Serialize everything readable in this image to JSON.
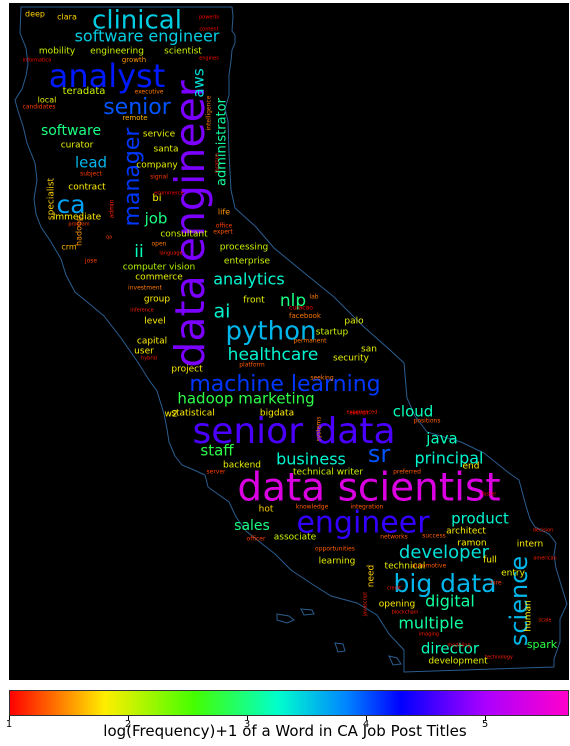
{
  "chart_data": {
    "type": "wordcloud",
    "xlabel": "log(Frequency)+1 of a Word in CA Job Post Titles",
    "colorbar": {
      "min": 1,
      "max": 5.7,
      "ticks": [
        "1",
        "2",
        "3",
        "4",
        "5"
      ],
      "colormap": "gist_rainbow"
    },
    "words": [
      {
        "text": "data scientist",
        "value": 5.4
      },
      {
        "text": "senior data",
        "value": 4.6
      },
      {
        "text": "data engineer",
        "value": 4.8
      },
      {
        "text": "engineer",
        "value": 4.5
      },
      {
        "text": "analyst",
        "value": 4.2
      },
      {
        "text": "machine learning",
        "value": 4.1
      },
      {
        "text": "big data",
        "value": 3.6
      },
      {
        "text": "python",
        "value": 3.6
      },
      {
        "text": "clinical",
        "value": 3.5
      },
      {
        "text": "software engineer",
        "value": 3.5
      },
      {
        "text": "senior",
        "value": 4.0
      },
      {
        "text": "manager",
        "value": 4.1
      },
      {
        "text": "ca",
        "value": 3.7
      },
      {
        "text": "science",
        "value": 3.6
      },
      {
        "text": "developer",
        "value": 3.4
      },
      {
        "text": "sr",
        "value": 4.0
      },
      {
        "text": "healthcare",
        "value": 3.3
      },
      {
        "text": "analytics",
        "value": 3.3
      },
      {
        "text": "administrator",
        "value": 3.1
      },
      {
        "text": "aws",
        "value": 3.4
      },
      {
        "text": "software",
        "value": 3.0
      },
      {
        "text": "lead",
        "value": 3.6
      },
      {
        "text": "job",
        "value": 3.0
      },
      {
        "text": "ii",
        "value": 3.2
      },
      {
        "text": "nlp",
        "value": 3.0
      },
      {
        "text": "ai",
        "value": 3.3
      },
      {
        "text": "hadoop marketing",
        "value": 2.8
      },
      {
        "text": "cloud",
        "value": 3.2
      },
      {
        "text": "java",
        "value": 3.2
      },
      {
        "text": "business",
        "value": 3.3
      },
      {
        "text": "principal",
        "value": 3.3
      },
      {
        "text": "staff",
        "value": 2.8
      },
      {
        "text": "product",
        "value": 3.3
      },
      {
        "text": "sales",
        "value": 3.0
      },
      {
        "text": "digital",
        "value": 3.1
      },
      {
        "text": "multiple",
        "value": 3.1
      },
      {
        "text": "director",
        "value": 3.2
      },
      {
        "text": "spark",
        "value": 2.8
      },
      {
        "text": "mobility",
        "value": 2.0
      },
      {
        "text": "engineering",
        "value": 2.0
      },
      {
        "text": "scientist",
        "value": 2.0
      },
      {
        "text": "teradata",
        "value": 2.0
      },
      {
        "text": "local",
        "value": 1.9
      },
      {
        "text": "curator",
        "value": 1.9
      },
      {
        "text": "service",
        "value": 1.9
      },
      {
        "text": "santa",
        "value": 1.9
      },
      {
        "text": "company",
        "value": 1.9
      },
      {
        "text": "contract",
        "value": 1.8
      },
      {
        "text": "immediate",
        "value": 1.8
      },
      {
        "text": "consultant",
        "value": 2.0
      },
      {
        "text": "processing",
        "value": 2.0
      },
      {
        "text": "enterprise",
        "value": 2.0
      },
      {
        "text": "computer vision",
        "value": 2.1
      },
      {
        "text": "commerce",
        "value": 1.9
      },
      {
        "text": "group",
        "value": 1.8
      },
      {
        "text": "level",
        "value": 1.8
      },
      {
        "text": "capital",
        "value": 1.8
      },
      {
        "text": "user",
        "value": 1.8
      },
      {
        "text": "front",
        "value": 1.9
      },
      {
        "text": "startup",
        "value": 2.0
      },
      {
        "text": "palo",
        "value": 1.9
      },
      {
        "text": "san",
        "value": 1.9
      },
      {
        "text": "security",
        "value": 1.9
      },
      {
        "text": "project",
        "value": 1.8
      },
      {
        "text": "statistical",
        "value": 1.8
      },
      {
        "text": "bigdata",
        "value": 1.8
      },
      {
        "text": "w2",
        "value": 1.8
      },
      {
        "text": "backend",
        "value": 1.9
      },
      {
        "text": "technical writer",
        "value": 2.0
      },
      {
        "text": "end",
        "value": 1.8
      },
      {
        "text": "associate",
        "value": 2.0
      },
      {
        "text": "hot",
        "value": 1.7
      },
      {
        "text": "architect",
        "value": 1.8
      },
      {
        "text": "ramon",
        "value": 1.8
      },
      {
        "text": "intern",
        "value": 1.8
      },
      {
        "text": "full",
        "value": 1.8
      },
      {
        "text": "entry",
        "value": 1.9
      },
      {
        "text": "learning",
        "value": 1.9
      },
      {
        "text": "technical",
        "value": 1.9
      },
      {
        "text": "opening",
        "value": 1.8
      },
      {
        "text": "development",
        "value": 1.9
      },
      {
        "text": "human",
        "value": 1.8
      },
      {
        "text": "need",
        "value": 1.7
      },
      {
        "text": "deep",
        "value": 1.7
      },
      {
        "text": "clara",
        "value": 1.7
      },
      {
        "text": "specialist",
        "value": 1.7
      },
      {
        "text": "crm",
        "value": 1.6
      },
      {
        "text": "hadoop",
        "value": 1.5
      },
      {
        "text": "bi",
        "value": 1.8
      },
      {
        "text": "remote",
        "value": 1.6
      },
      {
        "text": "growth",
        "value": 1.5
      },
      {
        "text": "executive",
        "value": 1.4
      },
      {
        "text": "intelligence",
        "value": 1.4
      },
      {
        "text": "life",
        "value": 1.5
      },
      {
        "text": "open",
        "value": 1.4
      },
      {
        "text": "investment",
        "value": 1.4
      },
      {
        "text": "lab",
        "value": 1.4
      },
      {
        "text": "facebook",
        "value": 1.4
      },
      {
        "text": "permanent",
        "value": 1.4
      },
      {
        "text": "seeking",
        "value": 1.4
      },
      {
        "text": "platform",
        "value": 1.3
      },
      {
        "text": "systems",
        "value": 1.4
      },
      {
        "text": "expert",
        "value": 1.3
      },
      {
        "text": "positions",
        "value": 1.3
      },
      {
        "text": "knowledge",
        "value": 1.3
      },
      {
        "text": "integration",
        "value": 1.3
      },
      {
        "text": "preferred",
        "value": 1.3
      },
      {
        "text": "server",
        "value": 1.2
      },
      {
        "text": "opportunities",
        "value": 1.3
      },
      {
        "text": "networks",
        "value": 1.3
      },
      {
        "text": "success",
        "value": 1.3
      },
      {
        "text": "automotive",
        "value": 1.3
      },
      {
        "text": "hire",
        "value": 1.2
      },
      {
        "text": "officer",
        "value": 1.2
      },
      {
        "text": "subject",
        "value": 1.2
      },
      {
        "text": "signal",
        "value": 1.2
      },
      {
        "text": "jose",
        "value": 1.2
      },
      {
        "text": "office",
        "value": 1.2
      },
      {
        "text": "candidates",
        "value": 1.2
      },
      {
        "text": "program",
        "value": 1.2
      },
      {
        "text": "qa",
        "value": 1.2
      },
      {
        "text": "language",
        "value": 1.1
      },
      {
        "text": "location",
        "value": 1.1
      },
      {
        "text": "inference",
        "value": 1.1
      },
      {
        "text": "hybrid",
        "value": 1.1
      },
      {
        "text": "experienced",
        "value": 1.1
      },
      {
        "text": "admin",
        "value": 1.1
      },
      {
        "text": "blockchain",
        "value": 1.1
      },
      {
        "text": "technology",
        "value": 1.1
      },
      {
        "text": "imaging",
        "value": 1.1
      },
      {
        "text": "american",
        "value": 1.1
      },
      {
        "text": "decision",
        "value": 1.1
      },
      {
        "text": "scale",
        "value": 1.1
      },
      {
        "text": "javascript",
        "value": 1.1
      },
      {
        "text": "powerbi",
        "value": 1.0
      },
      {
        "text": "content",
        "value": 1.0
      },
      {
        "text": "engines",
        "value": 1.0
      },
      {
        "text": "informatica",
        "value": 1.0
      },
      {
        "text": "foster",
        "value": 1.0
      },
      {
        "text": "credit",
        "value": 1.0
      },
      {
        "text": "ecommerce",
        "value": 1.0
      },
      {
        "text": "modeling",
        "value": 1.0
      },
      {
        "text": "curacao",
        "value": 1.0
      },
      {
        "text": "exempt",
        "value": 1.0
      }
    ]
  }
}
